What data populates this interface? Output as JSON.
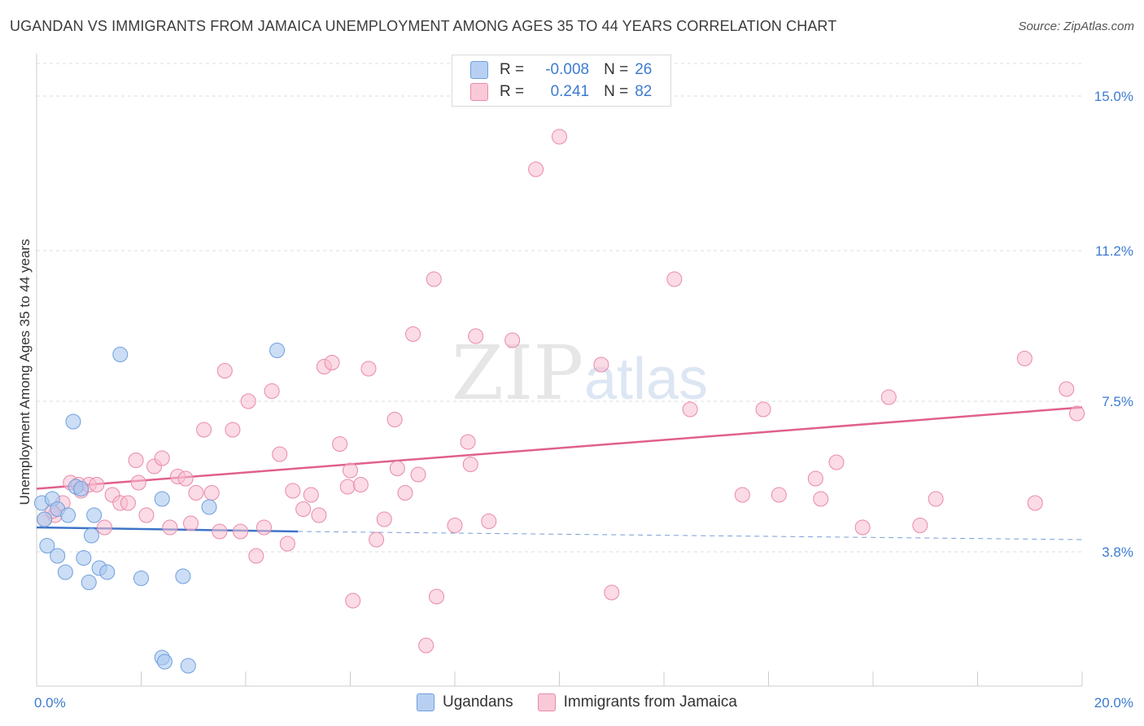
{
  "header": {
    "title": "UGANDAN VS IMMIGRANTS FROM JAMAICA UNEMPLOYMENT AMONG AGES 35 TO 44 YEARS CORRELATION CHART",
    "source": "Source: ZipAtlas.com"
  },
  "legend": {
    "r_label": "R =",
    "n_label": "N =",
    "rows": [
      {
        "r": "-0.008",
        "n": "26"
      },
      {
        "r": "0.241",
        "n": "82"
      }
    ]
  },
  "colors": {
    "blue_fill": "#a9c8f0",
    "blue_stroke": "#6f9fdc",
    "blue_line": "#3d74c9",
    "pink_fill": "#f7bdd0",
    "pink_stroke": "#e98aa8",
    "pink_line": "#e0608c",
    "tick_text": "#3d7bd1",
    "grid": "#dcdcdc"
  },
  "watermark": {
    "zip": "ZIP",
    "atlas": "atlas"
  },
  "chart_data": {
    "type": "scatter",
    "title": "UGANDAN VS IMMIGRANTS FROM JAMAICA UNEMPLOYMENT AMONG AGES 35 TO 44 YEARS CORRELATION CHART",
    "xlabel": "",
    "ylabel": "Unemployment Among Ages 35 to 44 years",
    "xlim": [
      0,
      20
    ],
    "ylim": [
      0.5,
      15.8
    ],
    "x_tick_labels": [
      "0.0%",
      "20.0%"
    ],
    "y_ticks": [
      3.8,
      7.5,
      11.2,
      15.0
    ],
    "y_tick_labels": [
      "3.8%",
      "7.5%",
      "11.2%",
      "15.0%"
    ],
    "grid": true,
    "series": [
      {
        "name": "Ugandans",
        "r": -0.008,
        "n": 26,
        "trend": {
          "x": [
            0,
            5.0
          ],
          "y": [
            4.4,
            4.3
          ],
          "extend_to": 20,
          "extend_y": 4.1
        },
        "points": [
          {
            "x": 0.1,
            "y": 5.0
          },
          {
            "x": 0.3,
            "y": 5.1
          },
          {
            "x": 0.15,
            "y": 4.6
          },
          {
            "x": 0.4,
            "y": 4.85
          },
          {
            "x": 0.6,
            "y": 4.7
          },
          {
            "x": 0.2,
            "y": 3.95
          },
          {
            "x": 0.4,
            "y": 3.7
          },
          {
            "x": 0.55,
            "y": 3.3
          },
          {
            "x": 0.7,
            "y": 7.0
          },
          {
            "x": 0.75,
            "y": 5.4
          },
          {
            "x": 0.85,
            "y": 5.35
          },
          {
            "x": 1.1,
            "y": 4.7
          },
          {
            "x": 1.05,
            "y": 4.2
          },
          {
            "x": 0.9,
            "y": 3.65
          },
          {
            "x": 1.2,
            "y": 3.4
          },
          {
            "x": 1.0,
            "y": 3.05
          },
          {
            "x": 1.35,
            "y": 3.3
          },
          {
            "x": 1.6,
            "y": 8.65
          },
          {
            "x": 2.0,
            "y": 3.15
          },
          {
            "x": 2.4,
            "y": 5.1
          },
          {
            "x": 2.8,
            "y": 3.2
          },
          {
            "x": 2.4,
            "y": 1.2
          },
          {
            "x": 2.45,
            "y": 1.1
          },
          {
            "x": 2.9,
            "y": 1.0
          },
          {
            "x": 3.3,
            "y": 4.9
          },
          {
            "x": 4.6,
            "y": 8.75
          }
        ]
      },
      {
        "name": "Immigrants from Jamaica",
        "r": 0.241,
        "n": 82,
        "trend": {
          "x": [
            0,
            20
          ],
          "y": [
            5.35,
            7.35
          ]
        },
        "points": [
          {
            "x": 0.15,
            "y": 4.6
          },
          {
            "x": 0.35,
            "y": 4.7
          },
          {
            "x": 0.3,
            "y": 4.8
          },
          {
            "x": 0.5,
            "y": 5.0
          },
          {
            "x": 0.65,
            "y": 5.5
          },
          {
            "x": 0.8,
            "y": 5.45
          },
          {
            "x": 0.85,
            "y": 5.3
          },
          {
            "x": 1.0,
            "y": 5.45
          },
          {
            "x": 1.15,
            "y": 5.45
          },
          {
            "x": 1.3,
            "y": 4.4
          },
          {
            "x": 1.45,
            "y": 5.2
          },
          {
            "x": 1.6,
            "y": 5.0
          },
          {
            "x": 1.75,
            "y": 5.0
          },
          {
            "x": 1.9,
            "y": 6.05
          },
          {
            "x": 1.95,
            "y": 5.5
          },
          {
            "x": 2.1,
            "y": 4.7
          },
          {
            "x": 2.25,
            "y": 5.9
          },
          {
            "x": 2.4,
            "y": 6.1
          },
          {
            "x": 2.55,
            "y": 4.4
          },
          {
            "x": 2.7,
            "y": 5.65
          },
          {
            "x": 2.85,
            "y": 5.6
          },
          {
            "x": 2.95,
            "y": 4.5
          },
          {
            "x": 3.05,
            "y": 5.25
          },
          {
            "x": 3.2,
            "y": 6.8
          },
          {
            "x": 3.35,
            "y": 5.25
          },
          {
            "x": 3.5,
            "y": 4.3
          },
          {
            "x": 3.6,
            "y": 8.25
          },
          {
            "x": 3.75,
            "y": 6.8
          },
          {
            "x": 3.9,
            "y": 4.3
          },
          {
            "x": 4.05,
            "y": 7.5
          },
          {
            "x": 4.2,
            "y": 3.7
          },
          {
            "x": 4.35,
            "y": 4.4
          },
          {
            "x": 4.5,
            "y": 7.75
          },
          {
            "x": 4.65,
            "y": 6.2
          },
          {
            "x": 4.8,
            "y": 4.0
          },
          {
            "x": 4.9,
            "y": 5.3
          },
          {
            "x": 5.1,
            "y": 4.85
          },
          {
            "x": 5.25,
            "y": 5.2
          },
          {
            "x": 5.4,
            "y": 4.7
          },
          {
            "x": 5.5,
            "y": 8.35
          },
          {
            "x": 5.65,
            "y": 8.45
          },
          {
            "x": 5.8,
            "y": 6.45
          },
          {
            "x": 5.95,
            "y": 5.4
          },
          {
            "x": 6.0,
            "y": 5.8
          },
          {
            "x": 6.05,
            "y": 2.6
          },
          {
            "x": 6.2,
            "y": 5.45
          },
          {
            "x": 6.35,
            "y": 8.3
          },
          {
            "x": 6.5,
            "y": 4.1
          },
          {
            "x": 6.65,
            "y": 4.6
          },
          {
            "x": 6.85,
            "y": 7.05
          },
          {
            "x": 6.9,
            "y": 5.85
          },
          {
            "x": 7.05,
            "y": 5.25
          },
          {
            "x": 7.2,
            "y": 9.15
          },
          {
            "x": 7.3,
            "y": 5.7
          },
          {
            "x": 7.45,
            "y": 1.5
          },
          {
            "x": 7.6,
            "y": 10.5
          },
          {
            "x": 7.65,
            "y": 2.7
          },
          {
            "x": 8.0,
            "y": 4.45
          },
          {
            "x": 8.25,
            "y": 6.5
          },
          {
            "x": 8.3,
            "y": 5.95
          },
          {
            "x": 8.4,
            "y": 9.1
          },
          {
            "x": 8.65,
            "y": 4.55
          },
          {
            "x": 9.1,
            "y": 9.0
          },
          {
            "x": 9.55,
            "y": 13.2
          },
          {
            "x": 10.0,
            "y": 14.0
          },
          {
            "x": 10.8,
            "y": 8.4
          },
          {
            "x": 11.0,
            "y": 2.8
          },
          {
            "x": 12.2,
            "y": 10.5
          },
          {
            "x": 12.5,
            "y": 7.3
          },
          {
            "x": 13.5,
            "y": 5.2
          },
          {
            "x": 13.9,
            "y": 7.3
          },
          {
            "x": 14.2,
            "y": 5.2
          },
          {
            "x": 14.9,
            "y": 5.6
          },
          {
            "x": 15.0,
            "y": 5.1
          },
          {
            "x": 15.3,
            "y": 6.0
          },
          {
            "x": 15.8,
            "y": 4.4
          },
          {
            "x": 16.3,
            "y": 7.6
          },
          {
            "x": 16.9,
            "y": 4.45
          },
          {
            "x": 17.2,
            "y": 5.1
          },
          {
            "x": 18.9,
            "y": 8.55
          },
          {
            "x": 19.1,
            "y": 5.0
          },
          {
            "x": 19.7,
            "y": 7.8
          },
          {
            "x": 19.9,
            "y": 7.2
          }
        ]
      }
    ]
  }
}
